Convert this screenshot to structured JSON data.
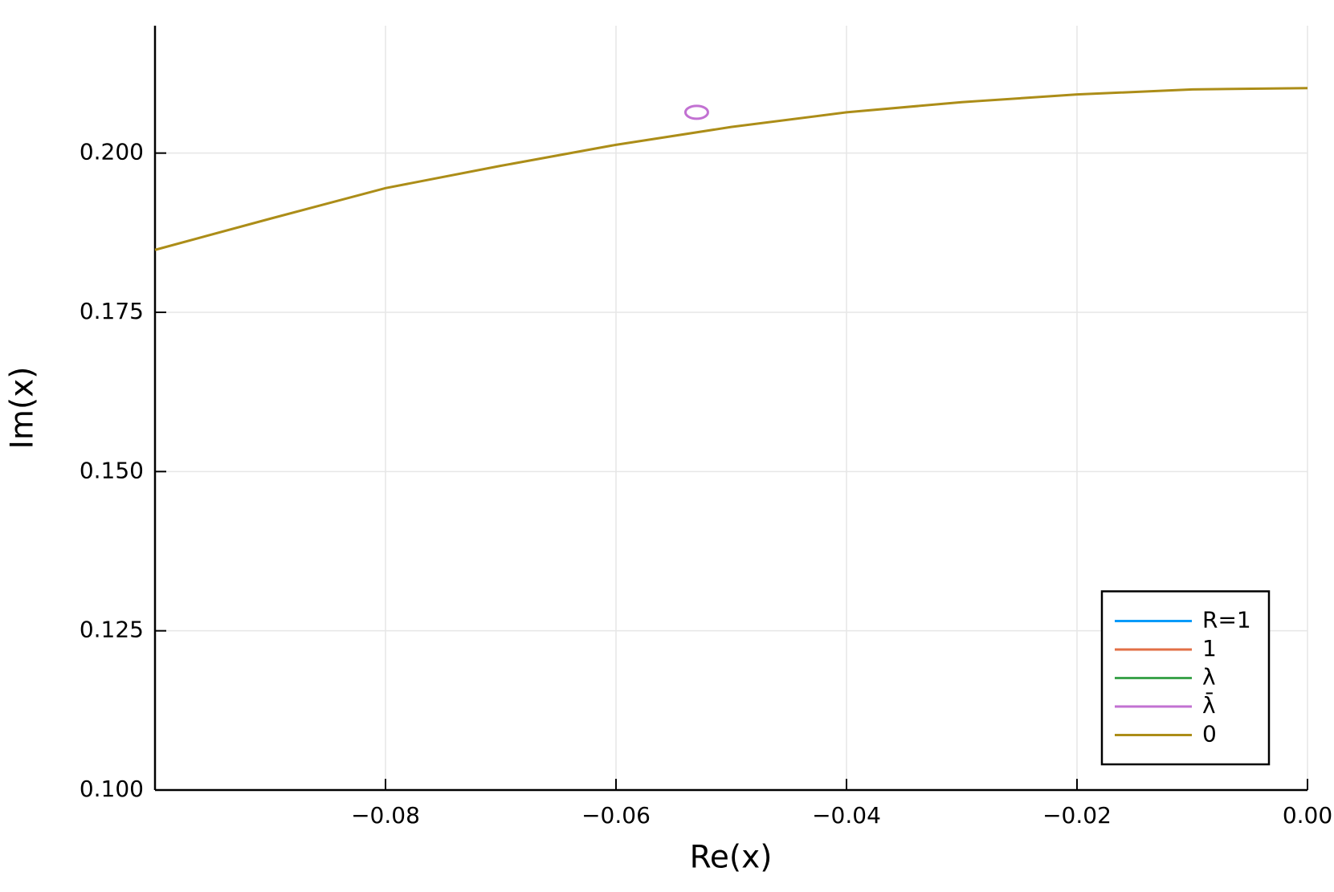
{
  "chart_data": {
    "type": "line",
    "xlabel": "Re(x)",
    "ylabel": "Im(x)",
    "xlim": [
      -0.1,
      0
    ],
    "ylim": [
      0.1,
      0.22
    ],
    "xticks": [
      {
        "value": -0.08,
        "label": "−0.08"
      },
      {
        "value": -0.06,
        "label": "−0.06"
      },
      {
        "value": -0.04,
        "label": "−0.04"
      },
      {
        "value": -0.02,
        "label": "−0.02"
      },
      {
        "value": 0,
        "label": "0.00"
      }
    ],
    "yticks": [
      {
        "value": 0.1,
        "label": "0.100"
      },
      {
        "value": 0.125,
        "label": "0.125"
      },
      {
        "value": 0.15,
        "label": "0.150"
      },
      {
        "value": 0.175,
        "label": "0.175"
      },
      {
        "value": 0.2,
        "label": "0.200"
      }
    ],
    "grid": true,
    "legend": "bottom right",
    "series": [
      {
        "name": "R=1",
        "color": "#009af9",
        "x": [],
        "values": []
      },
      {
        "name": "1",
        "color": "#e26f46",
        "x": [],
        "values": []
      },
      {
        "name": "λ",
        "color": "#3da44d",
        "x": [],
        "values": []
      },
      {
        "name": "λ̄",
        "color": "#c271d2",
        "x": [
          -0.053
        ],
        "values": [
          0.2064
        ]
      },
      {
        "name": "0",
        "color": "#ac8d18",
        "x": [
          -0.1,
          -0.09,
          -0.08,
          -0.07,
          -0.06,
          -0.05,
          -0.04,
          -0.03,
          -0.02,
          -0.01,
          0
        ],
        "values": [
          0.1848,
          0.1897,
          0.1945,
          0.198,
          0.2013,
          0.2041,
          0.2064,
          0.208,
          0.2092,
          0.21,
          0.2102
        ]
      }
    ]
  }
}
